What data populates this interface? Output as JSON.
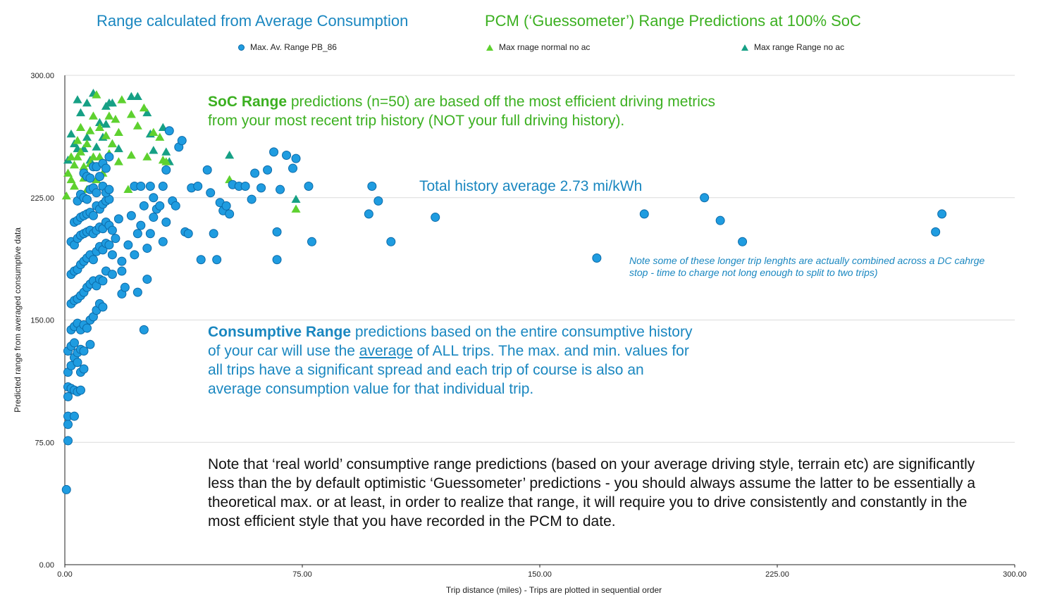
{
  "titles": {
    "left": "Range calculated from Average Consumption",
    "right": "PCM (‘Guessometer’) Range Predictions at 100% SoC"
  },
  "colors": {
    "series_blue": "#1f9ce0",
    "series_blue_edge": "#0b6aa8",
    "series_light_green": "#5ed12f",
    "series_dark_green": "#16a085",
    "title_blue": "#1a87c0",
    "title_green": "#3cb021",
    "gridline": "#dcdcdc"
  },
  "annotations": {
    "soc_bold": "SoC Range",
    "soc_text": " predictions (n=50) are based off the most efficient driving metrics from your most recent trip history (NOT your full driving history).",
    "total_avg": "Total history average 2.73 mi/kWh",
    "cons_bold": "Consumptive Range",
    "cons_text1": " predictions based on the entire consumptive history of your car will use the ",
    "cons_underline": "average",
    "cons_text2": " of ALL trips.  The max. and min. values for all trips have a significant spread and each trip of course is also an average consumption value for that individual trip.",
    "long_trip_note": "Note some of these longer trip lenghts are actually combined across a DC cahrge stop - time to charge not long enough to split to two trips)",
    "real_world": "Note that ‘real world’ consumptive range predictions (based on your average driving style, terrain etc) are significantly less than the by default optimistic ‘Guessometer’ predictions - you should always assume the latter to be essentially a theoretical max. or at least, in order to realize that range, it will require you to drive consistently and constantly in the most efficient style that you have recorded in the PCM to date."
  },
  "chart_data": {
    "type": "scatter",
    "xlabel": "Trip distance (miles) - Trips are plotted in sequential order",
    "ylabel": "Predicted range from averaged consumptive data",
    "xlim": [
      0,
      300
    ],
    "ylim": [
      0,
      300
    ],
    "x_ticks": [
      "0.00",
      "75.00",
      "150.00",
      "225.00",
      "300.00"
    ],
    "y_ticks": [
      "0.00",
      "75.00",
      "150.00",
      "225.00",
      "300.00"
    ],
    "grid": "horizontal",
    "legend_position": "top",
    "series": [
      {
        "name": "Max. Av. Range PB_86",
        "marker": "circle",
        "points": [
          [
            0.5,
            46
          ],
          [
            1,
            76
          ],
          [
            1,
            86
          ],
          [
            1,
            91
          ],
          [
            3,
            91
          ],
          [
            1,
            103
          ],
          [
            1,
            109
          ],
          [
            2,
            108
          ],
          [
            3,
            107
          ],
          [
            4,
            106
          ],
          [
            5,
            107
          ],
          [
            1,
            118
          ],
          [
            2,
            122
          ],
          [
            3,
            127
          ],
          [
            4,
            124
          ],
          [
            5,
            118
          ],
          [
            6,
            120
          ],
          [
            1,
            131
          ],
          [
            2,
            134
          ],
          [
            3,
            136
          ],
          [
            4,
            130
          ],
          [
            5,
            132
          ],
          [
            6,
            131
          ],
          [
            8,
            135
          ],
          [
            2,
            144
          ],
          [
            3,
            146
          ],
          [
            4,
            148
          ],
          [
            5,
            144
          ],
          [
            6,
            147
          ],
          [
            7,
            145
          ],
          [
            8,
            150
          ],
          [
            9,
            152
          ],
          [
            10,
            156
          ],
          [
            11,
            160
          ],
          [
            12,
            158
          ],
          [
            2,
            160
          ],
          [
            3,
            162
          ],
          [
            4,
            163
          ],
          [
            5,
            165
          ],
          [
            6,
            167
          ],
          [
            7,
            170
          ],
          [
            8,
            172
          ],
          [
            9,
            174
          ],
          [
            10,
            171
          ],
          [
            11,
            175
          ],
          [
            12,
            174
          ],
          [
            13,
            180
          ],
          [
            2,
            178
          ],
          [
            3,
            180
          ],
          [
            4,
            181
          ],
          [
            5,
            184
          ],
          [
            6,
            186
          ],
          [
            7,
            188
          ],
          [
            8,
            190
          ],
          [
            9,
            187
          ],
          [
            10,
            192
          ],
          [
            11,
            195
          ],
          [
            12,
            193
          ],
          [
            13,
            197
          ],
          [
            14,
            196
          ],
          [
            2,
            198
          ],
          [
            3,
            196
          ],
          [
            4,
            200
          ],
          [
            5,
            202
          ],
          [
            6,
            203
          ],
          [
            7,
            204
          ],
          [
            8,
            205
          ],
          [
            9,
            203
          ],
          [
            10,
            205
          ],
          [
            11,
            207
          ],
          [
            12,
            206
          ],
          [
            13,
            210
          ],
          [
            14,
            208
          ],
          [
            15,
            205
          ],
          [
            3,
            210
          ],
          [
            4,
            211
          ],
          [
            5,
            213
          ],
          [
            6,
            214
          ],
          [
            7,
            215
          ],
          [
            8,
            216
          ],
          [
            9,
            214
          ],
          [
            10,
            220
          ],
          [
            11,
            218
          ],
          [
            12,
            221
          ],
          [
            13,
            223
          ],
          [
            14,
            224
          ],
          [
            4,
            223
          ],
          [
            5,
            227
          ],
          [
            6,
            225
          ],
          [
            7,
            224
          ],
          [
            8,
            230
          ],
          [
            9,
            231
          ],
          [
            10,
            228
          ],
          [
            12,
            232
          ],
          [
            13,
            228
          ],
          [
            14,
            230
          ],
          [
            6,
            240
          ],
          [
            7,
            238
          ],
          [
            8,
            237
          ],
          [
            9,
            244
          ],
          [
            10,
            244
          ],
          [
            11,
            238
          ],
          [
            12,
            246
          ],
          [
            13,
            243
          ],
          [
            14,
            250
          ],
          [
            15,
            178
          ],
          [
            15,
            190
          ],
          [
            16,
            200
          ],
          [
            17,
            212
          ],
          [
            18,
            180
          ],
          [
            18,
            166
          ],
          [
            18,
            186
          ],
          [
            19,
            170
          ],
          [
            20,
            196
          ],
          [
            21,
            214
          ],
          [
            22,
            232
          ],
          [
            22,
            190
          ],
          [
            23,
            167
          ],
          [
            23,
            203
          ],
          [
            24,
            208
          ],
          [
            24,
            232
          ],
          [
            25,
            144
          ],
          [
            25,
            220
          ],
          [
            26,
            175
          ],
          [
            26,
            194
          ],
          [
            27,
            203
          ],
          [
            27,
            232
          ],
          [
            28,
            225
          ],
          [
            28,
            213
          ],
          [
            29,
            218
          ],
          [
            30,
            220
          ],
          [
            31,
            198
          ],
          [
            31,
            232
          ],
          [
            32,
            210
          ],
          [
            32,
            242
          ],
          [
            33,
            266
          ],
          [
            34,
            223
          ],
          [
            35,
            220
          ],
          [
            36,
            256
          ],
          [
            37,
            260
          ],
          [
            38,
            204
          ],
          [
            39,
            203
          ],
          [
            40,
            231
          ],
          [
            42,
            232
          ],
          [
            43,
            187
          ],
          [
            45,
            242
          ],
          [
            46,
            228
          ],
          [
            47,
            203
          ],
          [
            48,
            187
          ],
          [
            49,
            222
          ],
          [
            50,
            217
          ],
          [
            51,
            220
          ],
          [
            52,
            215
          ],
          [
            53,
            233
          ],
          [
            55,
            232
          ],
          [
            57,
            232
          ],
          [
            59,
            224
          ],
          [
            60,
            240
          ],
          [
            62,
            231
          ],
          [
            64,
            242
          ],
          [
            66,
            253
          ],
          [
            67,
            187
          ],
          [
            67,
            204
          ],
          [
            68,
            230
          ],
          [
            70,
            251
          ],
          [
            72,
            243
          ],
          [
            73,
            249
          ],
          [
            77,
            232
          ],
          [
            78,
            198
          ],
          [
            96,
            215
          ],
          [
            97,
            232
          ],
          [
            99,
            223
          ],
          [
            103,
            198
          ],
          [
            117,
            213
          ],
          [
            168,
            188
          ],
          [
            183,
            215
          ],
          [
            202,
            225
          ],
          [
            207,
            211
          ],
          [
            214,
            198
          ],
          [
            275,
            204
          ],
          [
            277,
            215
          ]
        ]
      },
      {
        "name": "Max rnage normal no ac",
        "marker": "triangle",
        "points": [
          [
            0.5,
            226
          ],
          [
            1,
            240
          ],
          [
            2,
            250
          ],
          [
            2,
            236
          ],
          [
            3,
            245
          ],
          [
            3,
            232
          ],
          [
            4,
            260
          ],
          [
            4,
            250
          ],
          [
            5,
            268
          ],
          [
            5,
            253
          ],
          [
            6,
            244
          ],
          [
            6,
            237
          ],
          [
            7,
            258
          ],
          [
            7,
            230
          ],
          [
            8,
            246
          ],
          [
            8,
            266
          ],
          [
            9,
            275
          ],
          [
            9,
            250
          ],
          [
            10,
            288
          ],
          [
            10,
            236
          ],
          [
            11,
            268
          ],
          [
            11,
            250
          ],
          [
            12,
            240
          ],
          [
            13,
            263
          ],
          [
            14,
            275
          ],
          [
            14,
            252
          ],
          [
            15,
            258
          ],
          [
            16,
            273
          ],
          [
            17,
            265
          ],
          [
            17,
            247
          ],
          [
            18,
            285
          ],
          [
            20,
            230
          ],
          [
            21,
            276
          ],
          [
            21,
            251
          ],
          [
            23,
            269
          ],
          [
            25,
            280
          ],
          [
            26,
            250
          ],
          [
            28,
            265
          ],
          [
            30,
            262
          ],
          [
            31,
            248
          ],
          [
            32,
            247
          ],
          [
            52,
            236
          ],
          [
            73,
            218
          ]
        ]
      },
      {
        "name": "Max range Range no ac",
        "marker": "triangle",
        "points": [
          [
            1,
            248
          ],
          [
            2,
            264
          ],
          [
            3,
            258
          ],
          [
            4,
            255
          ],
          [
            4,
            285
          ],
          [
            5,
            277
          ],
          [
            6,
            255
          ],
          [
            7,
            283
          ],
          [
            7,
            262
          ],
          [
            8,
            248
          ],
          [
            9,
            289
          ],
          [
            10,
            256
          ],
          [
            11,
            271
          ],
          [
            12,
            262
          ],
          [
            13,
            270
          ],
          [
            13,
            281
          ],
          [
            14,
            283
          ],
          [
            15,
            283
          ],
          [
            15,
            258
          ],
          [
            17,
            255
          ],
          [
            21,
            287
          ],
          [
            23,
            287
          ],
          [
            26,
            277
          ],
          [
            27,
            264
          ],
          [
            28,
            254
          ],
          [
            31,
            268
          ],
          [
            32,
            253
          ],
          [
            33,
            247
          ],
          [
            52,
            251
          ],
          [
            73,
            224
          ]
        ]
      }
    ]
  }
}
